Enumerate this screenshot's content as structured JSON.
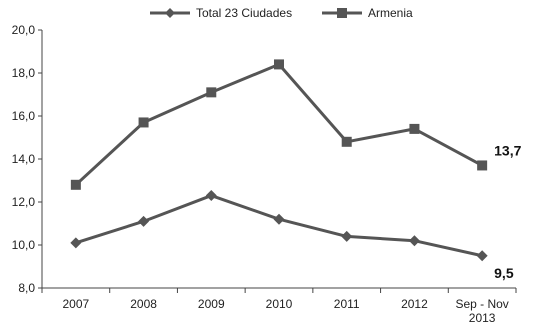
{
  "chart_data": {
    "type": "line",
    "categories": [
      "2007",
      "2008",
      "2009",
      "2010",
      "2011",
      "2012",
      "Sep - Nov 2013"
    ],
    "category_lines": [
      [
        "2007"
      ],
      [
        "2008"
      ],
      [
        "2009"
      ],
      [
        "2010"
      ],
      [
        "2011"
      ],
      [
        "2012"
      ],
      [
        "Sep - Nov",
        "2013"
      ]
    ],
    "series": [
      {
        "name": "Total 23 Ciudades",
        "marker": "diamond",
        "color": "#555555",
        "values": [
          10.1,
          11.1,
          12.3,
          11.2,
          10.4,
          10.2,
          9.5
        ]
      },
      {
        "name": "Armenia",
        "marker": "square",
        "color": "#555555",
        "values": [
          12.8,
          15.7,
          17.1,
          18.4,
          14.8,
          15.4,
          13.7
        ]
      }
    ],
    "ylim": [
      8.0,
      20.0
    ],
    "yticks": [
      "8,0",
      "10,0",
      "12,0",
      "14,0",
      "16,0",
      "18,0",
      "20,0"
    ],
    "end_labels": {
      "Armenia": "13,7",
      "Total 23 Ciudades": "9,5"
    },
    "legend_position": "top",
    "grid": false,
    "title": "",
    "xlabel": "",
    "ylabel": ""
  }
}
